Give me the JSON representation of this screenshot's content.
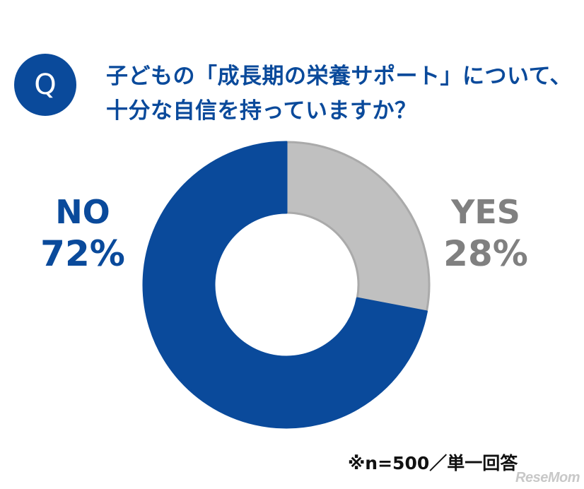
{
  "badge": {
    "letter": "Q"
  },
  "question": {
    "line1": "子どもの「成長期の栄養サポート」について、",
    "line2": "十分な自信を持っていますか？"
  },
  "note": "※n=500／単一回答",
  "watermark": "ReseMom",
  "colors": {
    "primary": "#0a4a9b",
    "yes": "#c0c0c0",
    "yes_stroke": "#aaaaaa",
    "yes_text": "#808080"
  },
  "chart_data": {
    "type": "pie",
    "variant": "donut",
    "title": "子どもの「成長期の栄養サポート」について、十分な自信を持っていますか？",
    "slices": [
      {
        "label": "YES",
        "value": 28,
        "display": "28%"
      },
      {
        "label": "NO",
        "value": 72,
        "display": "72%"
      }
    ],
    "start": "top",
    "direction": "clockwise",
    "sample_size": 500
  }
}
